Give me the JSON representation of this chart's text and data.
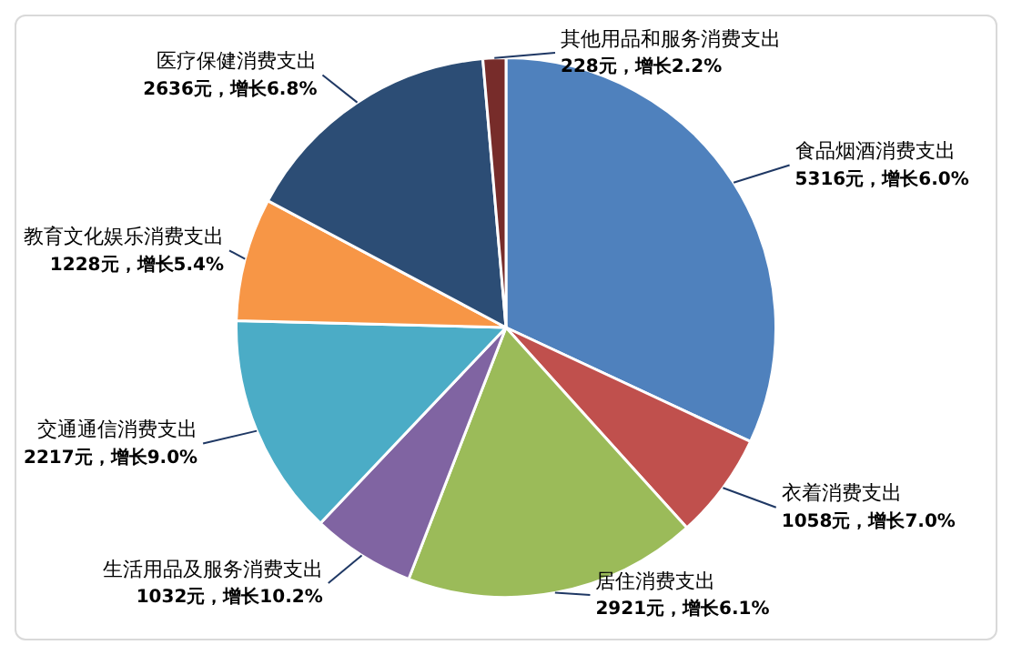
{
  "chart_data": {
    "type": "pie",
    "categories": [
      "食品烟酒消费支出",
      "衣着消费支出",
      "居住消费支出",
      "生活用品及服务消费支出",
      "交通通信消费支出",
      "教育文化娱乐消费支出",
      "医疗保健消费支出",
      "其他用品和服务消费支出"
    ],
    "values": [
      5316,
      1058,
      2921,
      1032,
      2217,
      1228,
      2636,
      228
    ],
    "value_labels": [
      "5316元，增长6.0%",
      "1058元，增长7.0%",
      "2921元，增长6.1%",
      "1032元，增长10.2%",
      "2217元，增长9.0%",
      "1228元，增长5.4%",
      "2636元，增长6.8%",
      "228元，增长2.2%"
    ],
    "colors": [
      "#4f81bd",
      "#c0504d",
      "#9bbb59",
      "#8064a2",
      "#4bacc6",
      "#f79646",
      "#2c4d75",
      "#772c2a"
    ],
    "legend": false
  }
}
